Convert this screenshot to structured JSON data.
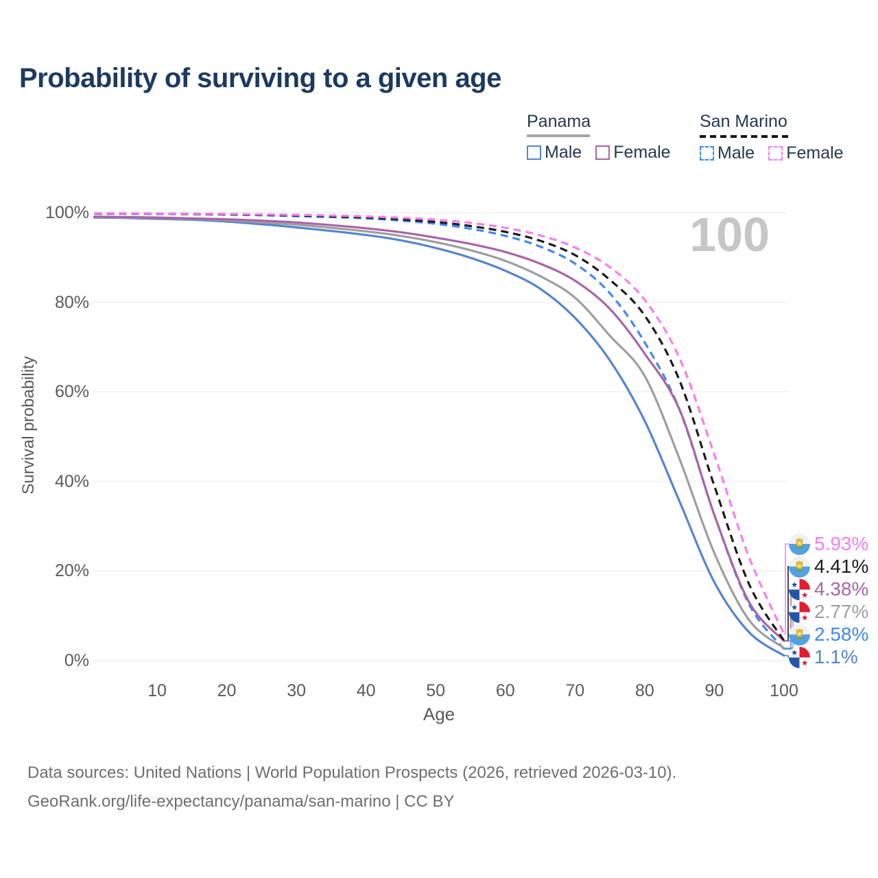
{
  "title": "Probability of surviving to a given age",
  "hover_age_label": "100",
  "legend": {
    "groups": [
      {
        "name": "Panama",
        "line_style": "solid",
        "line_color": "#a6a6a6",
        "items": [
          {
            "label": "Male",
            "color": "#5584cf",
            "dashed": false
          },
          {
            "label": "Female",
            "color": "#a963a6",
            "dashed": false
          }
        ]
      },
      {
        "name": "San Marino",
        "line_style": "dashed",
        "line_color": "#141414",
        "items": [
          {
            "label": "Male",
            "color": "#3f87f5",
            "dashed": true
          },
          {
            "label": "Female",
            "color": "#fa7df0",
            "dashed": true
          }
        ]
      }
    ]
  },
  "chart_data": {
    "type": "line",
    "title": "Probability of surviving to a given age",
    "xlabel": "Age",
    "ylabel": "Survival probability",
    "xlim": [
      0,
      100
    ],
    "ylim": [
      0,
      100
    ],
    "grid": "horizontal",
    "x_ticks": [
      {
        "value": 10,
        "label": "10"
      },
      {
        "value": 20,
        "label": "20"
      },
      {
        "value": 30,
        "label": "30"
      },
      {
        "value": 40,
        "label": "40"
      },
      {
        "value": 50,
        "label": "50"
      },
      {
        "value": 60,
        "label": "60"
      },
      {
        "value": 70,
        "label": "70"
      },
      {
        "value": 80,
        "label": "80"
      },
      {
        "value": 90,
        "label": "90"
      },
      {
        "value": 100,
        "label": "100"
      }
    ],
    "y_ticks": [
      {
        "value": 0,
        "label": "0%"
      },
      {
        "value": 20,
        "label": "20%"
      },
      {
        "value": 40,
        "label": "40%"
      },
      {
        "value": 60,
        "label": "60%"
      },
      {
        "value": 80,
        "label": "80%"
      },
      {
        "value": 100,
        "label": "100%"
      }
    ],
    "hover_age": 100,
    "ages": [
      1,
      5,
      10,
      15,
      20,
      25,
      30,
      35,
      40,
      45,
      50,
      55,
      60,
      65,
      70,
      75,
      80,
      85,
      90,
      95,
      100
    ],
    "series": [
      {
        "name": "San Marino Female",
        "country": "San Marino",
        "sex": "Female",
        "color": "#fa7df0",
        "dash": true,
        "flag": "san-marino",
        "end_label": "5.93%",
        "values": [
          99.85,
          99.83,
          99.8,
          99.76,
          99.7,
          99.6,
          99.5,
          99.35,
          99.15,
          98.85,
          98.4,
          97.7,
          96.6,
          94.9,
          92.2,
          87.8,
          80.5,
          67.5,
          46.0,
          23.0,
          5.93
        ]
      },
      {
        "name": "San Marino Both sexes",
        "country": "San Marino",
        "sex": "Both",
        "color": "#1a1a1a",
        "dash": true,
        "flag": "san-marino",
        "end_label": "4.41%",
        "values": [
          99.8,
          99.78,
          99.75,
          99.7,
          99.62,
          99.5,
          99.35,
          99.15,
          98.9,
          98.5,
          97.9,
          97.0,
          95.7,
          93.7,
          90.5,
          85.0,
          77.0,
          62.5,
          39.0,
          17.0,
          4.41
        ]
      },
      {
        "name": "Panama Female",
        "country": "Panama",
        "sex": "Female",
        "color": "#a963a6",
        "dash": false,
        "flag": "panama",
        "end_label": "4.38%",
        "values": [
          99.1,
          99.0,
          98.9,
          98.7,
          98.5,
          98.2,
          97.8,
          97.2,
          96.5,
          95.6,
          94.4,
          93.0,
          91.2,
          88.6,
          84.8,
          78.5,
          68.5,
          56.0,
          32.5,
          13.0,
          4.38
        ]
      },
      {
        "name": "Panama Both sexes",
        "country": "Panama",
        "sex": "Both",
        "color": "#9e9e9e",
        "dash": false,
        "flag": "panama",
        "end_label": "2.77%",
        "values": [
          99.0,
          98.9,
          98.8,
          98.6,
          98.3,
          97.8,
          97.3,
          96.6,
          95.8,
          94.8,
          93.4,
          91.6,
          89.2,
          85.8,
          81.0,
          72.5,
          63.5,
          45.0,
          24.0,
          9.0,
          2.77
        ]
      },
      {
        "name": "San Marino Male",
        "country": "San Marino",
        "sex": "Male",
        "color": "#3f87f5",
        "dash": true,
        "flag": "san-marino",
        "end_label": "2.58%",
        "values": [
          99.75,
          99.72,
          99.7,
          99.65,
          99.55,
          99.4,
          99.2,
          99.0,
          98.7,
          98.2,
          97.5,
          96.4,
          94.8,
          92.4,
          88.6,
          82.0,
          71.0,
          56.0,
          32.5,
          12.5,
          2.58
        ]
      },
      {
        "name": "Panama Male",
        "country": "Panama",
        "sex": "Male",
        "color": "#5584cf",
        "dash": false,
        "flag": "panama",
        "end_label": "1.1%",
        "values": [
          98.9,
          98.8,
          98.6,
          98.4,
          98.0,
          97.4,
          96.7,
          95.9,
          95.0,
          93.8,
          92.1,
          89.9,
          87.0,
          83.0,
          76.5,
          67.0,
          53.5,
          35.5,
          17.5,
          6.3,
          1.1
        ]
      }
    ],
    "legend_position": "top-right",
    "annotation": "100"
  },
  "footer": {
    "line1": "Data sources: United Nations | World Population Prospects (2026, retrieved 2026-03-10).",
    "line2": "GeoRank.org/life-expectancy/panama/san-marino | CC BY"
  }
}
